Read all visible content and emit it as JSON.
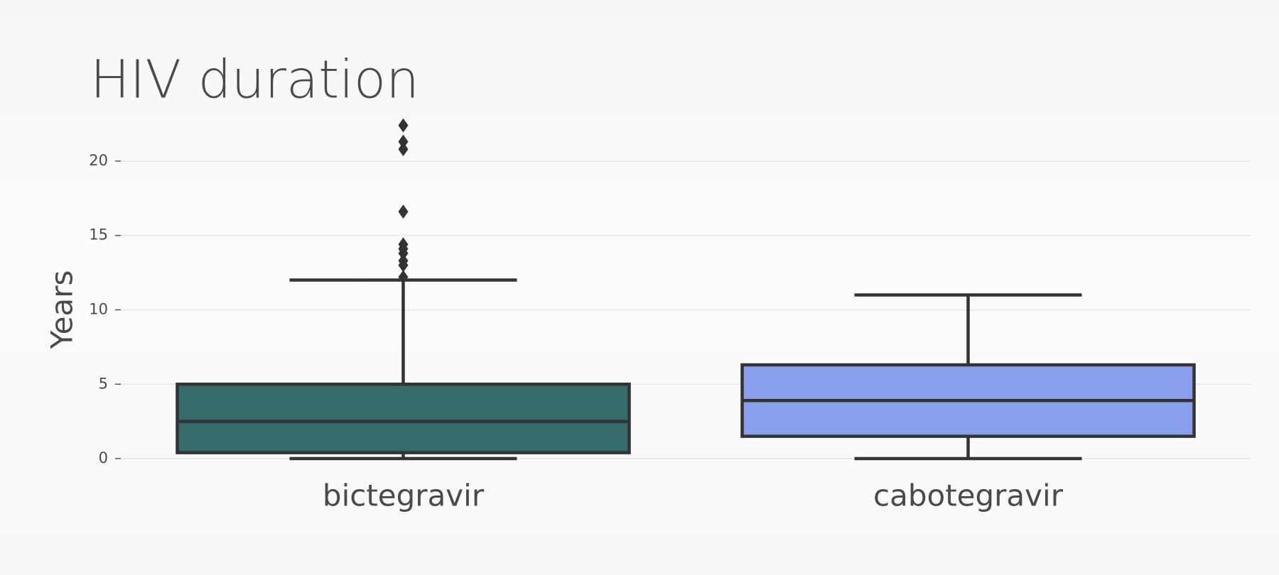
{
  "chart_data": {
    "type": "box",
    "title": "HIV duration",
    "y_label": "Years",
    "categories": [
      "bictegravir",
      "cabotegravir"
    ],
    "boxes": [
      {
        "low": 0,
        "q1": 0.4,
        "median": 2.5,
        "q3": 5.0,
        "high": 12.0,
        "color": "#366b69",
        "outliers": [
          22.4,
          21.3,
          20.8,
          16.6,
          14.4,
          14.1,
          13.8,
          13.3,
          13.0,
          12.2
        ]
      },
      {
        "low": 0,
        "q1": 1.5,
        "median": 3.9,
        "q3": 6.3,
        "high": 11.0,
        "color": "#88a0eb",
        "outliers": []
      }
    ],
    "ylim": [
      -1,
      23
    ],
    "yticks": [
      0,
      5,
      10,
      15,
      20
    ],
    "grid": true
  }
}
